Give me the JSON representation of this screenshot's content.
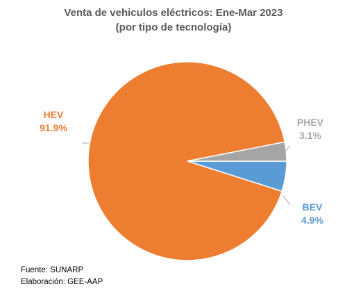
{
  "chart_data": {
    "type": "pie",
    "title": "Venta de vehiculos eléctricos: Ene-Mar 2023",
    "subtitle": "(por tipo de tecnología)",
    "slices": [
      {
        "name": "HEV",
        "value": 91.9,
        "label": "91.9%",
        "color": "#ED7D31"
      },
      {
        "name": "BEV",
        "value": 4.9,
        "label": "4.9%",
        "color": "#5B9BD5"
      },
      {
        "name": "PHEV",
        "value": 3.1,
        "label": "3.1%",
        "color": "#A5A5A5"
      }
    ]
  },
  "footer": {
    "source": "Fuente: SUNARP",
    "credit": "Elaboración: GEE-AAP"
  }
}
